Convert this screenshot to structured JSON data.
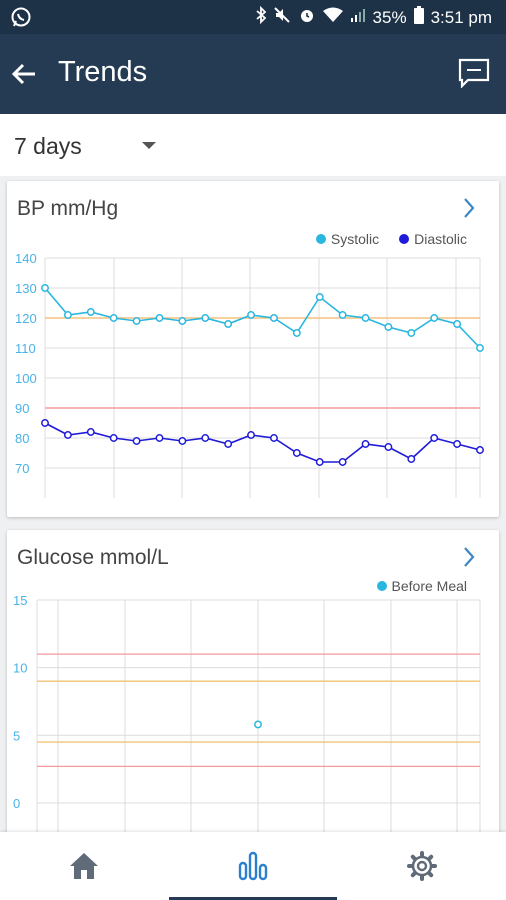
{
  "status_bar": {
    "battery": "35%",
    "time": "3:51 pm"
  },
  "header": {
    "title": "Trends"
  },
  "period_selector": {
    "value": "7 days"
  },
  "colors": {
    "header": "#243b53",
    "systolic": "#29b6e0",
    "diastolic": "#1f1bd8",
    "target_upper": "#f3c27a",
    "target_lower": "#f29a9a",
    "glucose_before_meal": "#29b6e0"
  },
  "bp_card": {
    "title": "BP mm/Hg",
    "chart_data": {
      "type": "line",
      "ylim": [
        60,
        140
      ],
      "yticks": [
        70,
        80,
        90,
        100,
        110,
        120,
        130,
        140
      ],
      "reference_lines": [
        120,
        90
      ],
      "legend": "top-right",
      "series": [
        {
          "name": "Systolic",
          "values": [
            130,
            121,
            122,
            120,
            119,
            120,
            119,
            120,
            118,
            121,
            120,
            115,
            127,
            121,
            120,
            117,
            115,
            120,
            118,
            110
          ]
        },
        {
          "name": "Diastolic",
          "values": [
            85,
            81,
            82,
            80,
            79,
            80,
            79,
            80,
            78,
            81,
            80,
            75,
            72,
            72,
            78,
            77,
            73,
            80,
            78,
            76
          ]
        }
      ]
    }
  },
  "glucose_card": {
    "title": "Glucose mmol/L",
    "chart_data": {
      "type": "scatter",
      "ylim": [
        -2,
        15
      ],
      "yticks": [
        0,
        5,
        10,
        15
      ],
      "reference_lines": [
        11,
        9,
        4.5,
        2.7
      ],
      "legend": "top-right",
      "series": [
        {
          "name": "Before Meal",
          "values": [
            5.8
          ]
        }
      ]
    }
  },
  "bottom_nav": {
    "items": [
      "home-icon",
      "trends-icon",
      "settings-icon"
    ],
    "active": "trends-icon"
  }
}
